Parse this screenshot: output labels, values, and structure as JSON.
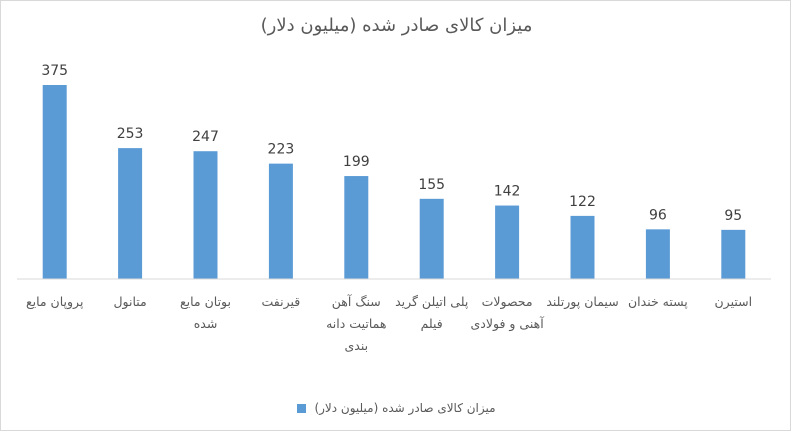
{
  "chart_data": {
    "type": "bar",
    "title": "میزان کالای صادر شده (میلیون دلار)",
    "categories": [
      "پروپان مایع",
      "متانول",
      "بوتان مایع شده",
      "قیرنفت",
      "سنگ آهن هماتیت دانه بندی",
      "پلی اتیلن گرید فیلم",
      "محصولات آهنی و فولادی",
      "سیمان پورتلند",
      "پسته خندان",
      "استیرن"
    ],
    "series": [
      {
        "name": "میزان کالای صادر شده (میلیون دلار)",
        "values": [
          375,
          253,
          247,
          223,
          199,
          155,
          142,
          122,
          96,
          95
        ],
        "color": "#5b9bd5"
      }
    ],
    "xlabel": "",
    "ylabel": "",
    "ylim": [
      0,
      375
    ],
    "grid": false,
    "data_labels": true,
    "legend_position": "bottom"
  }
}
